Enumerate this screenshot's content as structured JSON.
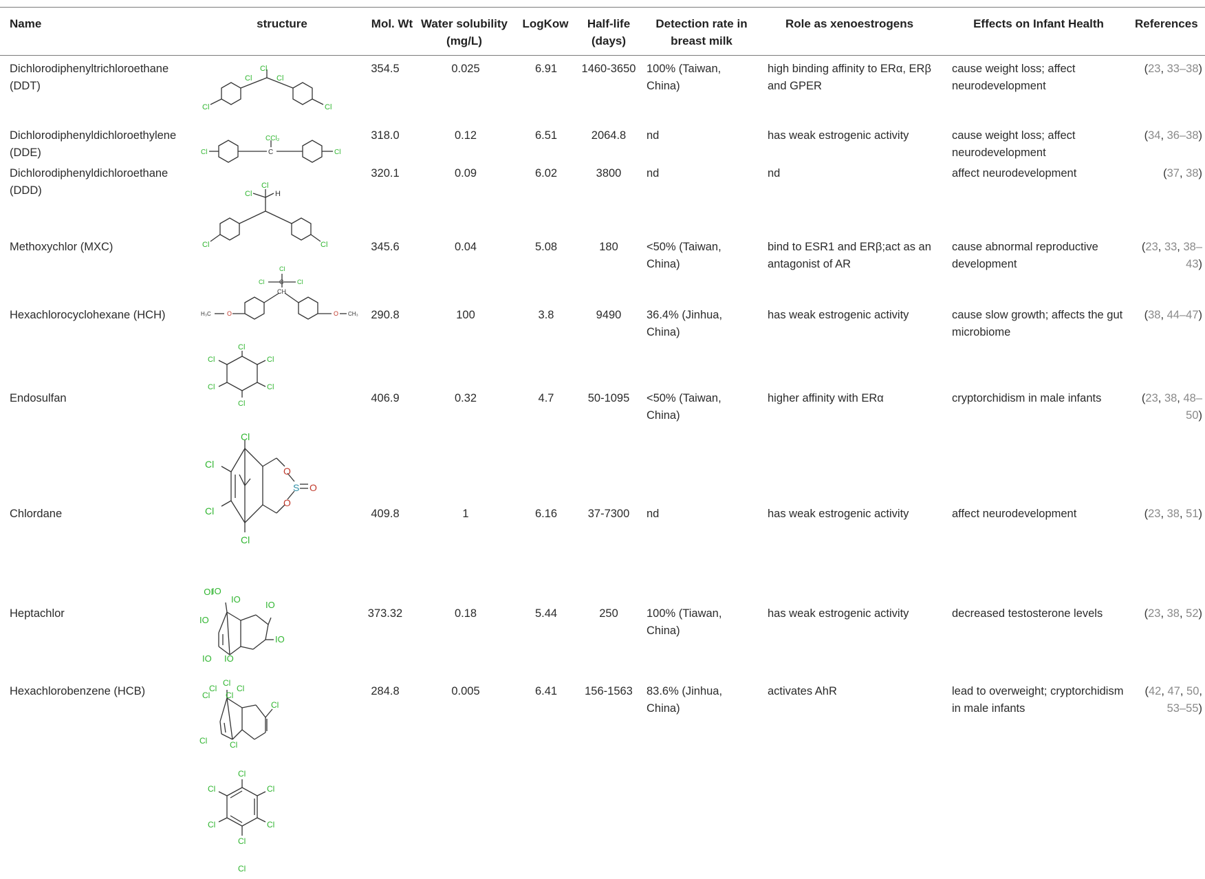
{
  "headers": {
    "name": "Name",
    "structure": "structure",
    "mw": "Mol. Wt",
    "sol": "Water solubility (mg/L)",
    "logkow": "LogKow",
    "half": "Half-life (days)",
    "det": "Detection rate in breast milk",
    "role": "Role as xenoestrogens",
    "effects": "Effects on Infant Health",
    "refs": "References"
  },
  "atom_labels": {
    "cl": "Cl",
    "h": "H",
    "ch": "CH",
    "c": "C",
    "ccl2": "CCl₂",
    "h3c": "H₃C",
    "ch3": "CH₃",
    "o": "O",
    "s": "S",
    "reversed_cl": "IO"
  },
  "rows": [
    {
      "name": "Dichlorodiphenyltrichloroethane (DDT)",
      "mw": "354.5",
      "sol": "0.025",
      "logkow": "6.91",
      "half": "1460-3650",
      "det": "100% (Taiwan, China)",
      "role": "high binding affinity to ERα, ERβ and GPER",
      "effects": "cause weight loss; affect neurodevelopment",
      "ref_open": "(",
      "refs": [
        "23",
        "33–38"
      ],
      "ref_close": ")"
    },
    {
      "name": "Dichlorodiphenyldichloroethylene (DDE)",
      "mw": "318.0",
      "sol": "0.12",
      "logkow": "6.51",
      "half": "2064.8",
      "det": "nd",
      "role": "has weak estrogenic activity",
      "effects": "cause weight loss; affect neurodevelopment",
      "ref_open": "(",
      "refs": [
        "34",
        "36–38"
      ],
      "ref_close": ")"
    },
    {
      "name": "Dichlorodiphenyldichloroethane (DDD)",
      "mw": "320.1",
      "sol": "0.09",
      "logkow": "6.02",
      "half": "3800",
      "det": "nd",
      "role": "nd",
      "effects": "affect neurodevelopment",
      "ref_open": "(",
      "refs": [
        "37",
        "38"
      ],
      "ref_close": ")"
    },
    {
      "name": "Methoxychlor (MXC)",
      "mw": "345.6",
      "sol": "0.04",
      "logkow": "5.08",
      "half": "180",
      "det": "<50% (Taiwan, China)",
      "role": "bind to ESR1 and ERβ;act as an antagonist of AR",
      "effects": "cause abnormal reproductive development",
      "ref_open": "(",
      "refs": [
        "23",
        "33",
        "38–43"
      ],
      "ref_close": ")"
    },
    {
      "name": "Hexachlorocyclohexane (HCH)",
      "mw": "290.8",
      "sol": "100",
      "logkow": "3.8",
      "half": "9490",
      "det": "36.4% (Jinhua, China)",
      "role": "has weak estrogenic activity",
      "effects": "cause slow growth; affects the gut microbiome",
      "ref_open": "(",
      "refs": [
        "38",
        "44–47"
      ],
      "ref_close": ")"
    },
    {
      "name": "Endosulfan",
      "mw": "406.9",
      "sol": "0.32",
      "logkow": "4.7",
      "half": "50-1095",
      "det": "<50% (Taiwan, China)",
      "role": "higher affinity with ERα",
      "effects": "cryptorchidism in male infants",
      "ref_open": "(",
      "refs": [
        "23",
        "38",
        "48–50"
      ],
      "ref_close": ")"
    },
    {
      "name": "Chlordane",
      "mw": "409.8",
      "sol": "1",
      "logkow": "6.16",
      "half": "37-7300",
      "det": "nd",
      "role": "has weak estrogenic activity",
      "effects": "affect neurodevelopment",
      "ref_open": "(",
      "refs": [
        "23",
        "38",
        "51"
      ],
      "ref_close": ")"
    },
    {
      "name": "Heptachlor",
      "mw": "373.32",
      "sol": "0.18",
      "logkow": "5.44",
      "half": "250",
      "det": "100% (Tiawan, China)",
      "role": "has weak estrogenic activity",
      "effects": "decreased testosterone levels",
      "ref_open": "(",
      "refs": [
        "23",
        "38",
        "52"
      ],
      "ref_close": ")"
    },
    {
      "name": "Hexachlorobenzene (HCB)",
      "mw": "284.8",
      "sol": "0.005",
      "logkow": "6.41",
      "half": "156-1563",
      "det": "83.6% (Jinhua, China)",
      "role": "activates AhR",
      "effects": "lead to overweight; cryptorchidism in male infants",
      "ref_open": "(",
      "refs": [
        "42",
        "47",
        "50",
        "53–55"
      ],
      "ref_close": ")"
    }
  ]
}
